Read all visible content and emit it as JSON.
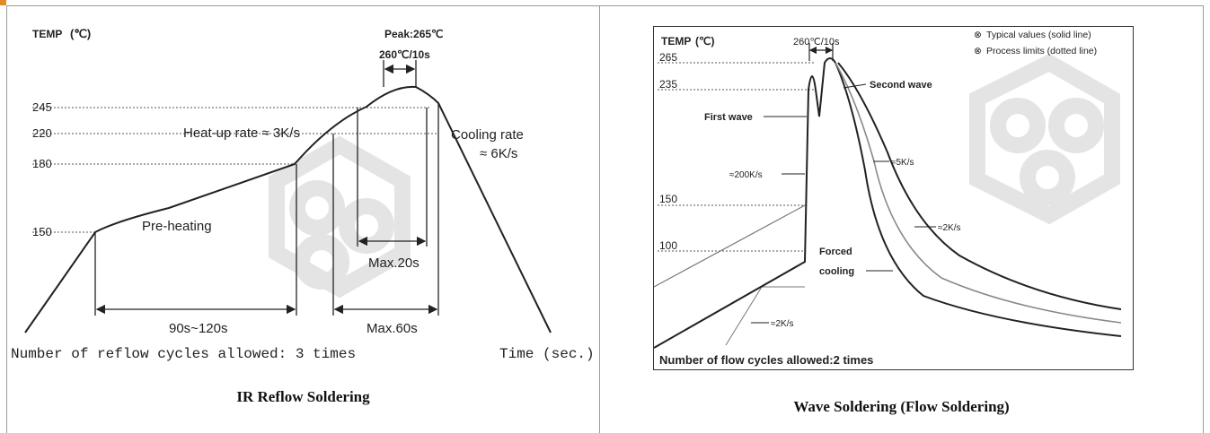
{
  "left_diagram": {
    "temp_label": "TEMP",
    "temp_unit": "(℃)",
    "peak_label": "Peak:265℃",
    "peak_time": "260℃/10s",
    "y_ticks": [
      "245",
      "220",
      "180",
      "150"
    ],
    "heat_up": "Heat-up rate ≈ 3K/s",
    "cooling_line1": "Cooling rate",
    "cooling_line2": "≈ 6K/s",
    "preheating": "Pre-heating",
    "max20": "Max.20s",
    "span_90_120": "90s~120s",
    "max60": "Max.60s",
    "cycles": "Number of reflow cycles allowed: 3 times",
    "time_label": "Time (sec.)",
    "caption": "IR Reflow Soldering"
  },
  "right_diagram": {
    "temp_label": "TEMP",
    "temp_unit": "(℃)",
    "peak_time": "260℃/10s",
    "legend_typical": "Typical values (solid line)",
    "legend_process": "Process limits (dotted line)",
    "y_ticks": [
      "265",
      "235",
      "150",
      "100"
    ],
    "second_wave": "Second wave",
    "first_wave": "First wave",
    "rate_200": "≈200K/s",
    "rate_5": "≈5K/s",
    "rate_2_right": "≈2K/s",
    "forced_line1": "Forced",
    "forced_line2": "cooling",
    "rate_2_bottom": "≈2K/s",
    "cycles": "Number of flow cycles allowed:2 times",
    "caption": "Wave Soldering (Flow Soldering)"
  },
  "colors": {
    "curve": "#222222",
    "dotted": "#555555",
    "watermark": "#e4e4e4",
    "accent": "#e08a2a"
  }
}
